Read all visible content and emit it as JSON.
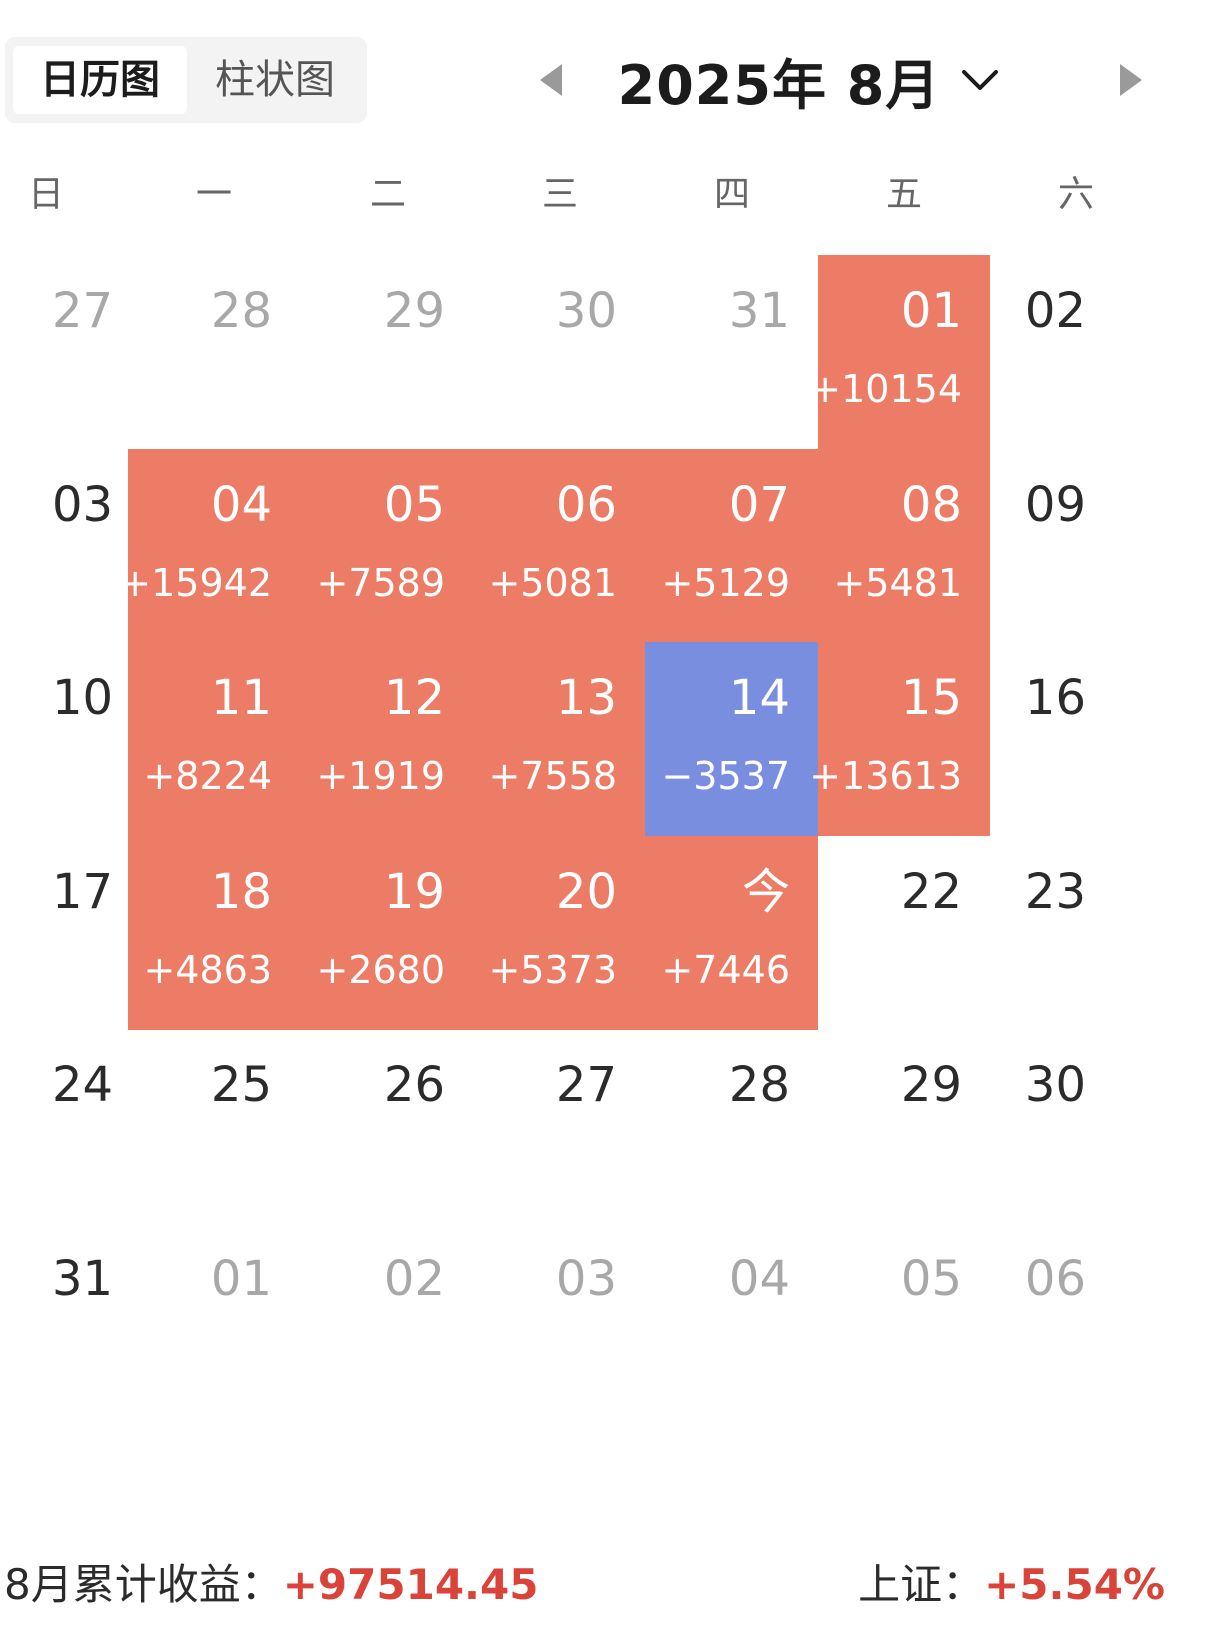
{
  "view_toggle": {
    "calendar_label": "日历图",
    "bar_label": "柱状图",
    "selected": "calendar"
  },
  "header": {
    "month_label": "2025年 8月"
  },
  "weekdays": [
    "日",
    "一",
    "二",
    "三",
    "四",
    "五",
    "六"
  ],
  "colors": {
    "gain": "#ec7c66",
    "loss": "#7a8ee0",
    "muted_text": "#a8a8a8",
    "summary_red": "#d9433a"
  },
  "weeks": [
    [
      {
        "day": "27",
        "muted": true
      },
      {
        "day": "28",
        "muted": true
      },
      {
        "day": "29",
        "muted": true
      },
      {
        "day": "30",
        "muted": true
      },
      {
        "day": "31",
        "muted": true
      },
      {
        "day": "01",
        "pnl": "+10154",
        "status": "gain"
      },
      {
        "day": "02"
      }
    ],
    [
      {
        "day": "03"
      },
      {
        "day": "04",
        "pnl": "+15942",
        "status": "gain"
      },
      {
        "day": "05",
        "pnl": "+7589",
        "status": "gain"
      },
      {
        "day": "06",
        "pnl": "+5081",
        "status": "gain"
      },
      {
        "day": "07",
        "pnl": "+5129",
        "status": "gain"
      },
      {
        "day": "08",
        "pnl": "+5481",
        "status": "gain"
      },
      {
        "day": "09"
      }
    ],
    [
      {
        "day": "10"
      },
      {
        "day": "11",
        "pnl": "+8224",
        "status": "gain"
      },
      {
        "day": "12",
        "pnl": "+1919",
        "status": "gain"
      },
      {
        "day": "13",
        "pnl": "+7558",
        "status": "gain"
      },
      {
        "day": "14",
        "pnl": "−3537",
        "status": "loss"
      },
      {
        "day": "15",
        "pnl": "+13613",
        "status": "gain"
      },
      {
        "day": "16"
      }
    ],
    [
      {
        "day": "17"
      },
      {
        "day": "18",
        "pnl": "+4863",
        "status": "gain"
      },
      {
        "day": "19",
        "pnl": "+2680",
        "status": "gain"
      },
      {
        "day": "20",
        "pnl": "+5373",
        "status": "gain"
      },
      {
        "day": "今",
        "pnl": "+7446",
        "status": "gain"
      },
      {
        "day": "22"
      },
      {
        "day": "23"
      }
    ],
    [
      {
        "day": "24"
      },
      {
        "day": "25"
      },
      {
        "day": "26"
      },
      {
        "day": "27"
      },
      {
        "day": "28"
      },
      {
        "day": "29"
      },
      {
        "day": "30"
      }
    ],
    [
      {
        "day": "31"
      },
      {
        "day": "01",
        "muted": true
      },
      {
        "day": "02",
        "muted": true
      },
      {
        "day": "03",
        "muted": true
      },
      {
        "day": "04",
        "muted": true
      },
      {
        "day": "05",
        "muted": true
      },
      {
        "day": "06",
        "muted": true
      }
    ]
  ],
  "summary": {
    "monthly_label": "8月累计收益：",
    "monthly_value": "+97514.45",
    "index_label": "上证：",
    "index_value": "+5.54%"
  }
}
